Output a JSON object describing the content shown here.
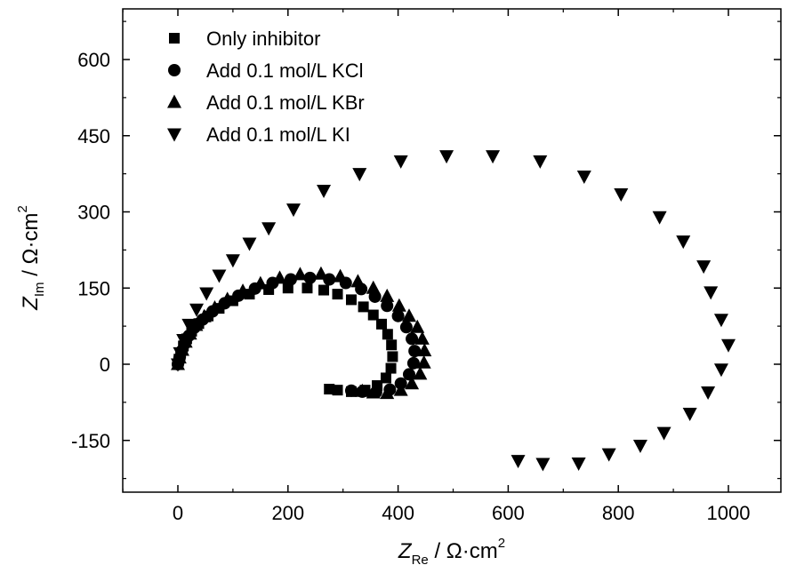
{
  "chart_data": {
    "type": "scatter",
    "xlabel": {
      "symbol": "Z",
      "subscript": "Re",
      "unit_prefix": " / Ω·cm",
      "unit_sup": "2"
    },
    "ylabel": {
      "symbol": "Z",
      "subscript": "Im",
      "unit_prefix": " / Ω·cm",
      "unit_sup": "2"
    },
    "xlim": [
      -100,
      1100
    ],
    "ylim": [
      -250,
      700
    ],
    "xticks": [
      0,
      200,
      400,
      600,
      800,
      1000
    ],
    "yticks": [
      -150,
      0,
      150,
      300,
      450,
      600
    ],
    "xtick_labels": [
      "0",
      "200",
      "400",
      "600",
      "800",
      "1000"
    ],
    "ytick_labels": [
      "-150",
      "0",
      "150",
      "300",
      "450",
      "600"
    ],
    "grid": false,
    "legend_position": "top-left",
    "series": [
      {
        "name": "Only inhibitor",
        "marker": "square",
        "points": [
          [
            0,
            0
          ],
          [
            2,
            10
          ],
          [
            5,
            22
          ],
          [
            10,
            36
          ],
          [
            16,
            50
          ],
          [
            25,
            65
          ],
          [
            38,
            80
          ],
          [
            55,
            95
          ],
          [
            75,
            110
          ],
          [
            100,
            125
          ],
          [
            130,
            138
          ],
          [
            165,
            147
          ],
          [
            200,
            150
          ],
          [
            235,
            150
          ],
          [
            265,
            146
          ],
          [
            290,
            138
          ],
          [
            315,
            127
          ],
          [
            337,
            113
          ],
          [
            355,
            97
          ],
          [
            370,
            79
          ],
          [
            381,
            59
          ],
          [
            388,
            38
          ],
          [
            390,
            15
          ],
          [
            387,
            -8
          ],
          [
            378,
            -27
          ],
          [
            362,
            -42
          ],
          [
            340,
            -51
          ],
          [
            315,
            -54
          ],
          [
            290,
            -51
          ],
          [
            275,
            -49
          ]
        ]
      },
      {
        "name": "Add 0.1 mol/L KCl",
        "marker": "circle",
        "points": [
          [
            0,
            0
          ],
          [
            3,
            12
          ],
          [
            7,
            26
          ],
          [
            12,
            40
          ],
          [
            20,
            56
          ],
          [
            30,
            72
          ],
          [
            45,
            88
          ],
          [
            63,
            104
          ],
          [
            85,
            120
          ],
          [
            110,
            135
          ],
          [
            140,
            149
          ],
          [
            172,
            160
          ],
          [
            205,
            167
          ],
          [
            240,
            170
          ],
          [
            275,
            167
          ],
          [
            305,
            160
          ],
          [
            333,
            148
          ],
          [
            358,
            133
          ],
          [
            380,
            115
          ],
          [
            400,
            95
          ],
          [
            415,
            73
          ],
          [
            425,
            50
          ],
          [
            430,
            26
          ],
          [
            428,
            2
          ],
          [
            420,
            -20
          ],
          [
            405,
            -38
          ],
          [
            385,
            -50
          ],
          [
            360,
            -55
          ],
          [
            335,
            -54
          ],
          [
            315,
            -52
          ]
        ]
      },
      {
        "name": "Add 0.1 mol/L KBr",
        "marker": "triangle-up",
        "points": [
          [
            0,
            0
          ],
          [
            3,
            13
          ],
          [
            8,
            28
          ],
          [
            14,
            44
          ],
          [
            22,
            60
          ],
          [
            33,
            77
          ],
          [
            48,
            94
          ],
          [
            67,
            111
          ],
          [
            90,
            128
          ],
          [
            118,
            144
          ],
          [
            150,
            159
          ],
          [
            185,
            170
          ],
          [
            222,
            177
          ],
          [
            260,
            178
          ],
          [
            295,
            173
          ],
          [
            327,
            163
          ],
          [
            355,
            150
          ],
          [
            380,
            134
          ],
          [
            402,
            115
          ],
          [
            420,
            95
          ],
          [
            435,
            73
          ],
          [
            444,
            50
          ],
          [
            448,
            27
          ],
          [
            447,
            3
          ],
          [
            440,
            -19
          ],
          [
            425,
            -38
          ],
          [
            405,
            -51
          ],
          [
            380,
            -57
          ],
          [
            355,
            -56
          ],
          [
            335,
            -53
          ]
        ]
      },
      {
        "name": "Add 0.1 mol/L KI",
        "marker": "triangle-down",
        "points": [
          [
            0,
            0
          ],
          [
            4,
            22
          ],
          [
            10,
            48
          ],
          [
            20,
            78
          ],
          [
            34,
            108
          ],
          [
            52,
            140
          ],
          [
            75,
            175
          ],
          [
            100,
            205
          ],
          [
            130,
            238
          ],
          [
            165,
            268
          ],
          [
            210,
            305
          ],
          [
            265,
            342
          ],
          [
            330,
            375
          ],
          [
            405,
            400
          ],
          [
            488,
            410
          ],
          [
            572,
            410
          ],
          [
            658,
            400
          ],
          [
            738,
            370
          ],
          [
            805,
            335
          ],
          [
            875,
            290
          ],
          [
            918,
            242
          ],
          [
            955,
            193
          ],
          [
            968,
            142
          ],
          [
            987,
            88
          ],
          [
            1000,
            38
          ],
          [
            987,
            -10
          ],
          [
            963,
            -55
          ],
          [
            930,
            -97
          ],
          [
            883,
            -135
          ],
          [
            840,
            -160
          ],
          [
            783,
            -177
          ],
          [
            728,
            -195
          ],
          [
            663,
            -196
          ],
          [
            618,
            -190
          ]
        ]
      }
    ]
  }
}
